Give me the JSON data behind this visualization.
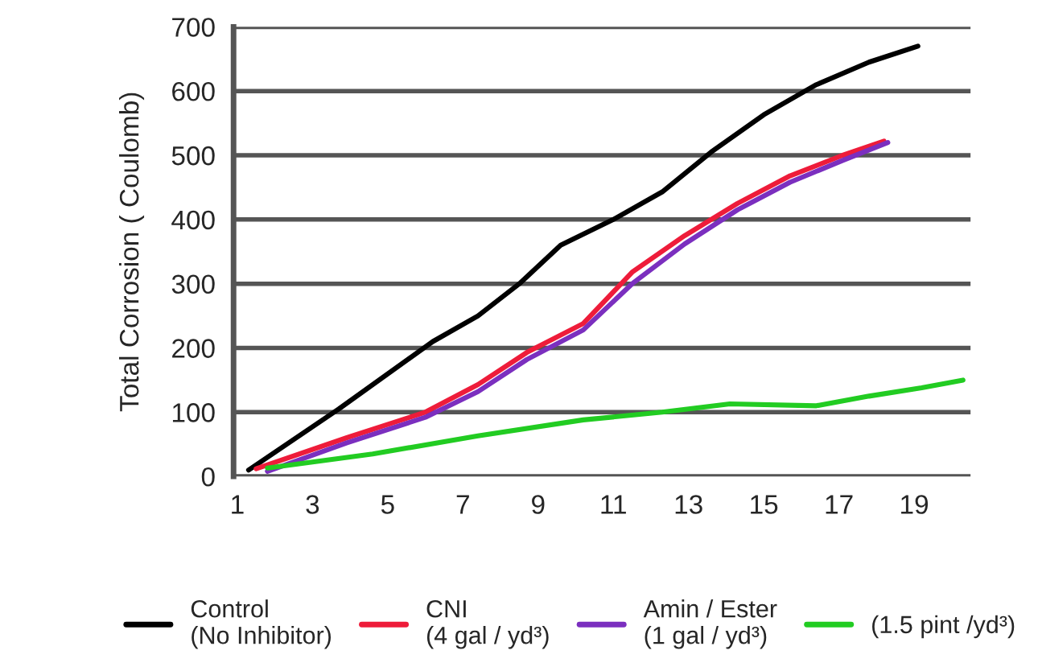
{
  "chart_data": {
    "type": "line",
    "ylabel": "Total Corrosion ( Coulomb)",
    "xlim": [
      0.9,
      20.5
    ],
    "xticks": [
      1,
      3,
      5,
      7,
      9,
      11,
      13,
      15,
      17,
      19
    ],
    "ylim": [
      0,
      700
    ],
    "yticks": [
      0,
      100,
      200,
      300,
      400,
      500,
      600,
      700
    ],
    "grid": "y",
    "legend": "bottom",
    "marker": "none",
    "line_style": "solid",
    "series": [
      {
        "name": "Control\n(No Inhibitor)",
        "color": "#000000",
        "x": [
          1.3,
          3.7,
          6.2,
          7.4,
          8.5,
          9.6,
          11.0,
          12.3,
          13.6,
          15.0,
          16.4,
          17.8,
          19.1
        ],
        "values": [
          10,
          105,
          210,
          250,
          300,
          360,
          400,
          443,
          505,
          563,
          610,
          645,
          670
        ]
      },
      {
        "name": "CNI\n(4 gal / yd³)",
        "color": "#ee1c3a",
        "x": [
          1.5,
          3.9,
          6.0,
          7.4,
          8.7,
          10.2,
          11.5,
          12.9,
          14.3,
          15.7,
          17.1,
          18.2
        ],
        "values": [
          12,
          60,
          100,
          143,
          193,
          238,
          318,
          375,
          425,
          468,
          500,
          522
        ]
      },
      {
        "name": "Amin / Ester\n(1 gal / yd³)",
        "color": "#7b2fbf",
        "x": [
          1.8,
          3.9,
          6.0,
          7.4,
          8.7,
          10.2,
          11.5,
          12.9,
          14.3,
          15.7,
          17.1,
          18.3
        ],
        "values": [
          8,
          52,
          92,
          132,
          182,
          228,
          300,
          362,
          415,
          458,
          492,
          520
        ]
      },
      {
        "name": "(1.5 pint /yd³)",
        "color": "#22cc22",
        "x": [
          1.8,
          4.6,
          7.4,
          10.2,
          12.3,
          14.1,
          16.4,
          17.8,
          19.2,
          20.3
        ],
        "values": [
          13,
          35,
          63,
          88,
          100,
          113,
          110,
          125,
          138,
          150
        ]
      }
    ]
  }
}
